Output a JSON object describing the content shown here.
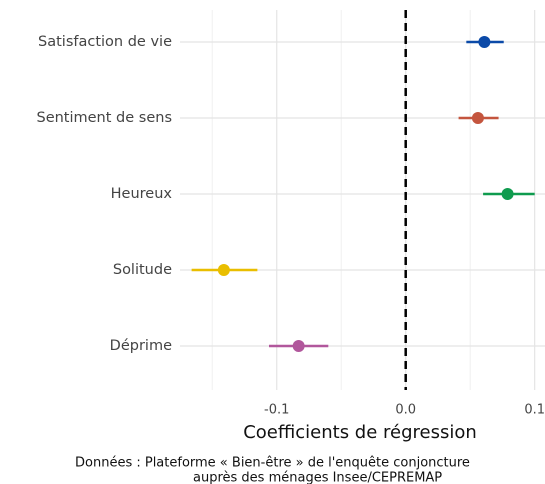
{
  "chart_data": {
    "type": "coefplot",
    "xlabel": "Coefficients de régression",
    "caption": [
      "Données : Plateforme « Bien-être » de l'enquête conjoncture",
      "auprès des ménages Insee/CEPREMAP"
    ],
    "categories": [
      "Satisfaction de vie",
      "Sentiment de sens",
      "Heureux",
      "Solitude",
      "Déprime"
    ],
    "values": [
      0.061,
      0.056,
      0.079,
      -0.141,
      -0.083
    ],
    "ci_low": [
      0.047,
      0.041,
      0.06,
      -0.166,
      -0.106
    ],
    "ci_high": [
      0.076,
      0.072,
      0.1,
      -0.115,
      -0.06
    ],
    "colors": [
      "#0b4aa8",
      "#c4553e",
      "#0f9b4e",
      "#e9be00",
      "#b1579c"
    ],
    "xlim": [
      -0.175,
      0.108
    ],
    "xticks": [
      -0.1,
      {
        "value": 0,
        "label": "0.0"
      },
      0.1
    ],
    "xminorticks": [
      -0.15,
      -0.05,
      0.05
    ],
    "reference_line": 0,
    "grid": true
  }
}
